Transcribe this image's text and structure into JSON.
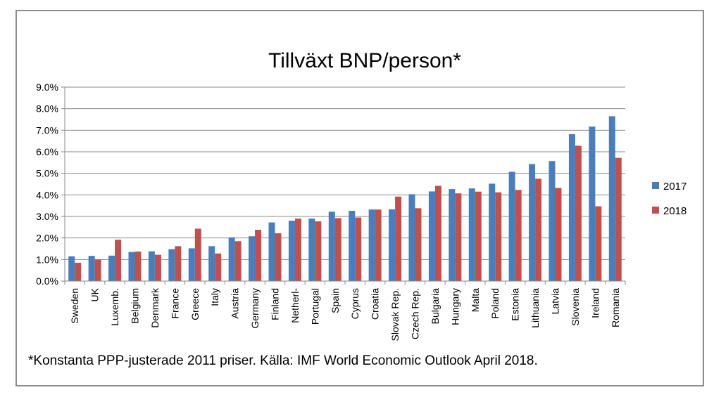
{
  "chart_data": {
    "type": "bar",
    "title": "Tillväxt BNP/person*",
    "xlabel": "",
    "ylabel": "",
    "ylim": [
      0,
      9
    ],
    "yticks": [
      "0.0%",
      "1.0%",
      "2.0%",
      "3.0%",
      "4.0%",
      "5.0%",
      "6.0%",
      "7.0%",
      "8.0%",
      "9.0%"
    ],
    "grid": true,
    "legend_position": "right",
    "categories": [
      "Sweden",
      "UK",
      "Luxemb.",
      "Belgium",
      "Denmark",
      "France",
      "Greece",
      "Italy",
      "Austria",
      "Germany",
      "Finland",
      "Netherl-",
      "Portugal",
      "Spain",
      "Cyprus",
      "Croatia",
      "Slovak Rep.",
      "Czech Rep.",
      "Bulgaria",
      "Hungary",
      "Malta",
      "Poland",
      "Estonia",
      "Lithuania",
      "Latvia",
      "Slovenia",
      "Ireland",
      "Romania"
    ],
    "series": [
      {
        "name": "2017",
        "color": "#4a7ebb",
        "values": [
          1.15,
          1.17,
          1.18,
          1.35,
          1.38,
          1.48,
          1.52,
          1.62,
          2.03,
          2.08,
          2.72,
          2.8,
          2.9,
          3.22,
          3.26,
          3.32,
          3.33,
          4.03,
          4.16,
          4.27,
          4.3,
          4.52,
          5.07,
          5.43,
          5.57,
          6.82,
          7.17,
          7.65
        ]
      },
      {
        "name": "2018",
        "color": "#c0504d",
        "values": [
          0.85,
          1.0,
          1.92,
          1.37,
          1.22,
          1.62,
          2.43,
          1.28,
          1.85,
          2.38,
          2.22,
          2.9,
          2.77,
          2.92,
          2.95,
          3.32,
          3.92,
          3.38,
          4.42,
          4.07,
          4.15,
          4.12,
          4.23,
          4.75,
          4.32,
          6.28,
          3.47,
          5.72
        ]
      }
    ],
    "footnote": "*Konstanta PPP-justerade 2011 priser. Källa: IMF World Economic Outlook April 2018."
  }
}
